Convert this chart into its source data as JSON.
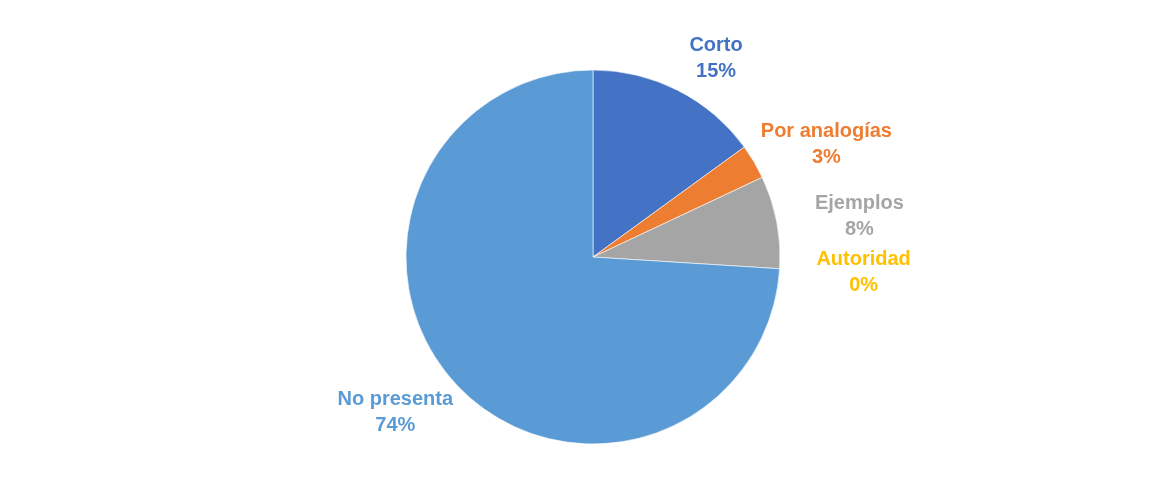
{
  "chart_data": {
    "type": "pie",
    "categories": [
      "Corto",
      "Por analogías",
      "Ejemplos",
      "Autoridad",
      "No presenta"
    ],
    "values": [
      15,
      3,
      8,
      0,
      74
    ],
    "colors": [
      "#4472c4",
      "#ed7d31",
      "#a5a5a5",
      "#ffc000",
      "#5b9bd5"
    ],
    "value_labels": [
      "15%",
      "3%",
      "8%",
      "0%",
      "74%"
    ],
    "legend": false
  }
}
